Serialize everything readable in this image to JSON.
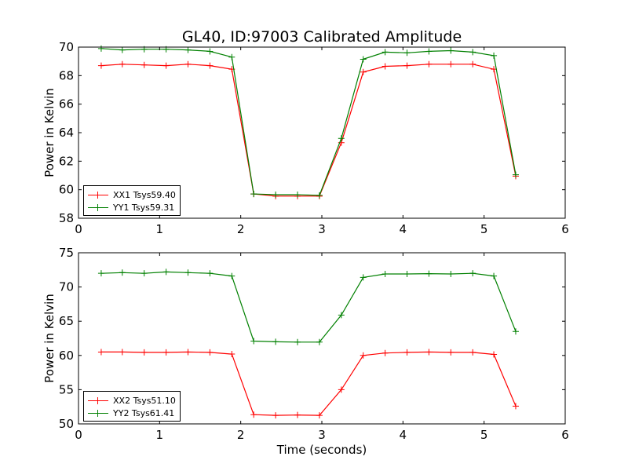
{
  "title": "GL40, ID:97003 Calibrated Amplitude",
  "chart_data": [
    {
      "type": "line",
      "xlabel": "",
      "ylabel": "Power in Kelvin",
      "xlim": [
        0,
        6
      ],
      "ylim": [
        58,
        70
      ],
      "xticks": [
        "0",
        "1",
        "2",
        "3",
        "4",
        "5",
        "6"
      ],
      "yticks": [
        "58",
        "60",
        "62",
        "64",
        "66",
        "68",
        "70"
      ],
      "legend_position": "lower-left",
      "series": [
        {
          "name": "XX1 Tsys59.40",
          "color": "#ff0000",
          "x": [
            0.28,
            0.54,
            0.81,
            1.08,
            1.35,
            1.62,
            1.89,
            2.16,
            2.43,
            2.7,
            2.97,
            3.24,
            3.51,
            3.78,
            4.05,
            4.32,
            4.59,
            4.86,
            5.12,
            5.39
          ],
          "y": [
            68.7,
            68.8,
            68.75,
            68.7,
            68.8,
            68.7,
            68.45,
            59.7,
            59.55,
            59.55,
            59.55,
            63.3,
            68.25,
            68.65,
            68.7,
            68.8,
            68.8,
            68.8,
            68.45,
            60.95
          ]
        },
        {
          "name": "YY1 Tsys59.31",
          "color": "#008000",
          "x": [
            0.28,
            0.54,
            0.81,
            1.08,
            1.35,
            1.62,
            1.89,
            2.16,
            2.43,
            2.7,
            2.97,
            3.24,
            3.51,
            3.78,
            4.05,
            4.32,
            4.59,
            4.86,
            5.12,
            5.39
          ],
          "y": [
            69.9,
            69.8,
            69.85,
            69.85,
            69.8,
            69.7,
            69.3,
            59.7,
            59.65,
            59.65,
            59.6,
            63.6,
            69.15,
            69.65,
            69.6,
            69.7,
            69.75,
            69.65,
            69.4,
            61.05
          ]
        }
      ]
    },
    {
      "type": "line",
      "xlabel": "Time (seconds)",
      "ylabel": "Power in Kelvin",
      "xlim": [
        0,
        6
      ],
      "ylim": [
        50,
        75
      ],
      "xticks": [
        "0",
        "1",
        "2",
        "3",
        "4",
        "5",
        "6"
      ],
      "yticks": [
        "50",
        "55",
        "60",
        "65",
        "70",
        "75"
      ],
      "legend_position": "lower-left",
      "series": [
        {
          "name": "XX2 Tsys51.10",
          "color": "#ff0000",
          "x": [
            0.28,
            0.54,
            0.81,
            1.08,
            1.35,
            1.62,
            1.89,
            2.16,
            2.43,
            2.7,
            2.97,
            3.24,
            3.51,
            3.78,
            4.05,
            4.32,
            4.59,
            4.86,
            5.12,
            5.39
          ],
          "y": [
            60.5,
            60.5,
            60.45,
            60.45,
            60.5,
            60.45,
            60.2,
            51.35,
            51.25,
            51.3,
            51.25,
            55.0,
            60.0,
            60.35,
            60.45,
            60.5,
            60.45,
            60.45,
            60.15,
            52.6
          ]
        },
        {
          "name": "YY2 Tsys61.41",
          "color": "#008000",
          "x": [
            0.28,
            0.54,
            0.81,
            1.08,
            1.35,
            1.62,
            1.89,
            2.16,
            2.43,
            2.7,
            2.97,
            3.24,
            3.51,
            3.78,
            4.05,
            4.32,
            4.59,
            4.86,
            5.12,
            5.39
          ],
          "y": [
            72.0,
            72.1,
            72.0,
            72.2,
            72.1,
            72.0,
            71.6,
            62.1,
            62.0,
            61.95,
            61.95,
            65.9,
            71.4,
            71.9,
            71.9,
            71.95,
            71.9,
            72.0,
            71.6,
            63.5
          ]
        }
      ]
    }
  ]
}
